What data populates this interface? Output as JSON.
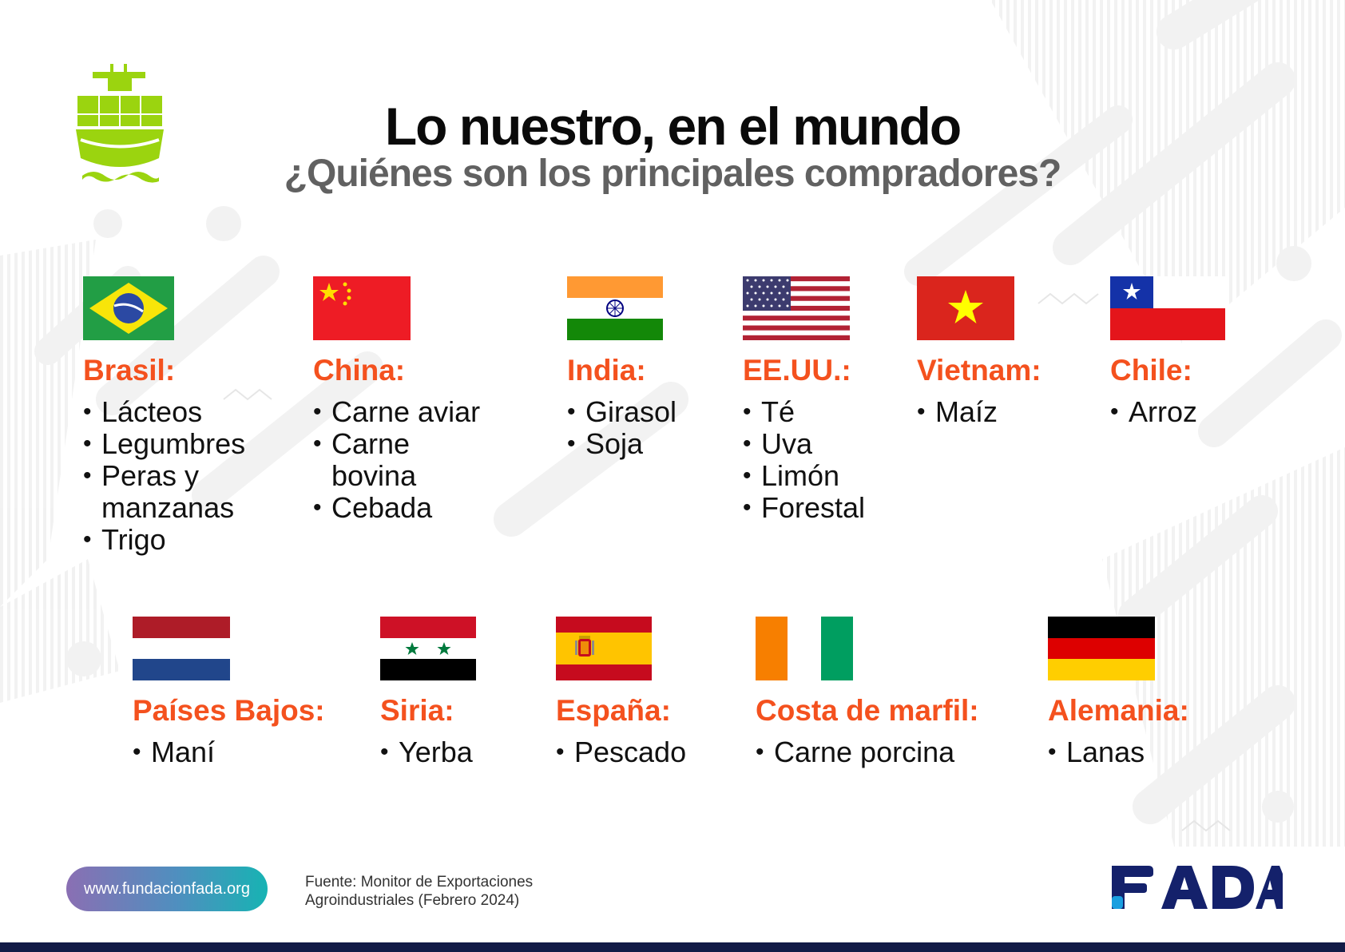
{
  "title": "Lo nuestro, en el mundo",
  "subtitle": "¿Quiénes son los principales compradores?",
  "ship_icon": "cargo-ship-icon",
  "accent_color": "#f4511e",
  "countries": [
    {
      "name": "Brasil:",
      "flag": "brazil-flag",
      "items": [
        "Lácteos",
        "Legumbres",
        "Peras y manzanas",
        "Trigo"
      ]
    },
    {
      "name": "China:",
      "flag": "china-flag",
      "items": [
        "Carne aviar",
        "Carne bovina",
        "Cebada"
      ]
    },
    {
      "name": "India:",
      "flag": "india-flag",
      "items": [
        "Girasol",
        "Soja"
      ]
    },
    {
      "name": "EE.UU.:",
      "flag": "usa-flag",
      "items": [
        "Té",
        "Uva",
        "Limón",
        "Forestal"
      ]
    },
    {
      "name": "Vietnam:",
      "flag": "vietnam-flag",
      "items": [
        "Maíz"
      ]
    },
    {
      "name": "Chile:",
      "flag": "chile-flag",
      "items": [
        "Arroz"
      ]
    },
    {
      "name": "Países Bajos:",
      "flag": "netherlands-flag",
      "items": [
        "Maní"
      ]
    },
    {
      "name": "Siria:",
      "flag": "syria-flag",
      "items": [
        "Yerba"
      ]
    },
    {
      "name": "España:",
      "flag": "spain-flag",
      "items": [
        "Pescado"
      ]
    },
    {
      "name": "Costa de marfil:",
      "flag": "ivory-coast-flag",
      "items": [
        "Carne porcina"
      ]
    },
    {
      "name": "Alemania:",
      "flag": "germany-flag",
      "items": [
        "Lanas"
      ]
    }
  ],
  "footer": {
    "website": "www.fundacionfada.org",
    "source_line1": "Fuente: Monitor de Exportaciones",
    "source_line2": "Agroindustriales (Febrero 2024)",
    "logo_text": "FADA",
    "logo_color": "#14216b",
    "logo_dot_color": "#1a9fe0",
    "bar_color": "#121b47"
  }
}
